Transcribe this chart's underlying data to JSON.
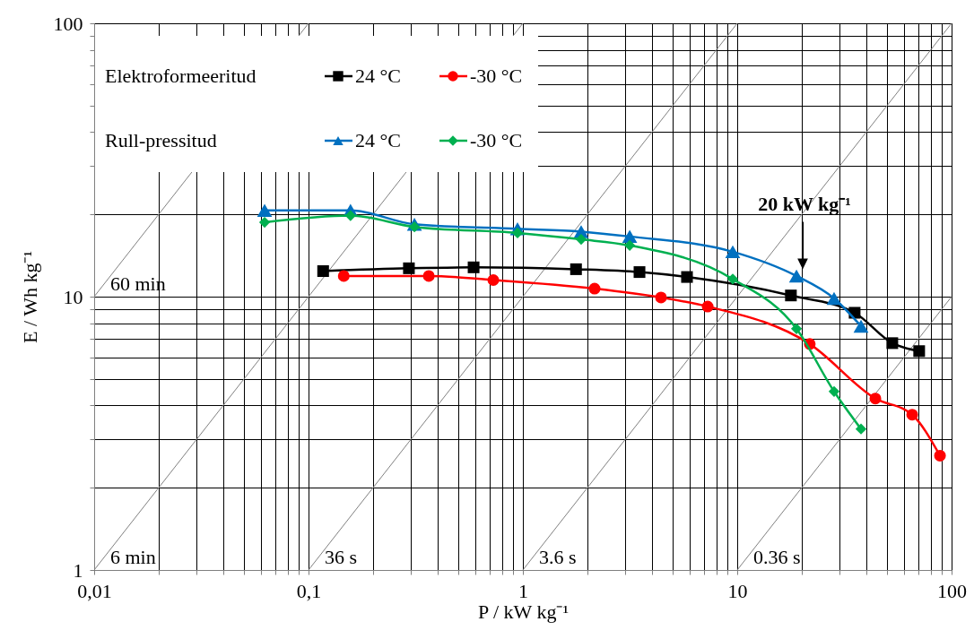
{
  "chart_data": {
    "type": "line",
    "xlabel": "P / kW kg⁻¹",
    "ylabel": "E / Wh kg⁻¹",
    "xlim": [
      0.01,
      100
    ],
    "ylim": [
      1,
      100
    ],
    "xticks": [
      {
        "value": 0.01,
        "label": "0,01"
      },
      {
        "value": 0.02,
        "label": null
      },
      {
        "value": 0.03,
        "label": null
      },
      {
        "value": 0.04,
        "label": null
      },
      {
        "value": 0.05,
        "label": null
      },
      {
        "value": 0.06,
        "label": null
      },
      {
        "value": 0.07,
        "label": null
      },
      {
        "value": 0.08,
        "label": null
      },
      {
        "value": 0.09,
        "label": null
      },
      {
        "value": 0.1,
        "label": "0,1"
      },
      {
        "value": 0.2,
        "label": null
      },
      {
        "value": 0.3,
        "label": null
      },
      {
        "value": 0.4,
        "label": null
      },
      {
        "value": 0.5,
        "label": null
      },
      {
        "value": 0.6,
        "label": null
      },
      {
        "value": 0.7,
        "label": null
      },
      {
        "value": 0.8,
        "label": null
      },
      {
        "value": 0.9,
        "label": null
      },
      1,
      {
        "value": 2,
        "label": null
      },
      {
        "value": 3,
        "label": null
      },
      {
        "value": 4,
        "label": null
      },
      {
        "value": 5,
        "label": null
      },
      {
        "value": 6,
        "label": null
      },
      {
        "value": 7,
        "label": null
      },
      {
        "value": 8,
        "label": null
      },
      {
        "value": 9,
        "label": null
      },
      10,
      {
        "value": 20,
        "label": null
      },
      {
        "value": 30,
        "label": null
      },
      {
        "value": 40,
        "label": null
      },
      {
        "value": 50,
        "label": null
      },
      {
        "value": 60,
        "label": null
      },
      {
        "value": 70,
        "label": null
      },
      {
        "value": 80,
        "label": null
      },
      {
        "value": 90,
        "label": null
      },
      100
    ],
    "yticks": [
      1,
      {
        "value": 2,
        "label": null
      },
      {
        "value": 3,
        "label": null
      },
      {
        "value": 4,
        "label": null
      },
      {
        "value": 5,
        "label": null
      },
      {
        "value": 6,
        "label": null
      },
      {
        "value": 7,
        "label": null
      },
      {
        "value": 8,
        "label": null
      },
      {
        "value": 9,
        "label": null
      },
      10,
      {
        "value": 20,
        "label": null
      },
      {
        "value": 30,
        "label": null
      },
      {
        "value": 40,
        "label": null
      },
      {
        "value": 50,
        "label": null
      },
      {
        "value": 60,
        "label": null
      },
      {
        "value": 70,
        "label": null
      },
      {
        "value": 80,
        "label": null
      },
      {
        "value": 90,
        "label": null
      },
      100
    ],
    "log": "xy",
    "grid": true,
    "legend": "top left",
    "series": [
      {
        "name": "24 °C",
        "color": "#000000",
        "marker": "square",
        "x": [
          0.117,
          0.294,
          0.589,
          1.77,
          3.5,
          5.83,
          17.8,
          35.3,
          52.9,
          70.6
        ],
        "values": [
          12.4,
          12.7,
          12.8,
          12.6,
          12.3,
          11.8,
          10.1,
          8.73,
          6.76,
          6.32
        ]
      },
      {
        "name": "-30 °C",
        "color": "#ff0000",
        "marker": "circle",
        "x": [
          0.146,
          0.364,
          0.728,
          2.16,
          4.41,
          7.28,
          21.8,
          44.1,
          65.5,
          88.3
        ],
        "values": [
          11.9,
          11.9,
          11.5,
          10.7,
          9.93,
          9.2,
          6.71,
          4.24,
          3.7,
          2.62
        ]
      },
      {
        "name": "24 °C",
        "color": "#0070c0",
        "marker": "triangle",
        "x": [
          0.0624,
          0.157,
          0.312,
          0.944,
          1.87,
          3.15,
          9.53,
          18.9,
          28.3,
          37.8
        ],
        "values": [
          20.7,
          20.7,
          18.4,
          17.7,
          17.3,
          16.6,
          14.6,
          11.9,
          9.85,
          7.8
        ]
      },
      {
        "name": "-30 °C",
        "color": "#00b050",
        "marker": "diamond",
        "x": [
          0.0624,
          0.157,
          0.312,
          0.944,
          1.87,
          3.15,
          9.53,
          18.9,
          28.3,
          37.8
        ],
        "values": [
          18.7,
          19.8,
          18.0,
          17.1,
          16.2,
          15.4,
          11.6,
          7.63,
          4.5,
          3.28
        ]
      },
      {
        "color": "#808080",
        "marker": "none",
        "x": [
          0.01,
          0.1
        ],
        "values": [
          10,
          100
        ]
      },
      {
        "color": "#808080",
        "marker": "none",
        "x": [
          0.01,
          1
        ],
        "values": [
          1,
          100
        ]
      },
      {
        "color": "#808080",
        "marker": "none",
        "x": [
          0.1,
          10
        ],
        "values": [
          1,
          100
        ]
      },
      {
        "color": "#808080",
        "marker": "none",
        "x": [
          1,
          100
        ],
        "values": [
          1,
          100
        ]
      },
      {
        "color": "#808080",
        "marker": "none",
        "x": [
          10,
          100
        ],
        "values": [
          1,
          10
        ]
      }
    ],
    "annotations": [
      "Elektroformeeritud",
      "Rull-pressitud",
      {
        "text": "60 min",
        "x": 0.01,
        "y": 10
      },
      {
        "text": "6 min",
        "x": 0.01,
        "y": 1
      },
      {
        "text": "36 s",
        "x": 0.1,
        "y": 1
      },
      {
        "text": "3.6 s",
        "x": 1,
        "y": 1
      },
      {
        "text": "0.36 s",
        "x": 10,
        "y": 1
      },
      "20 kW kg⁻¹"
    ]
  }
}
